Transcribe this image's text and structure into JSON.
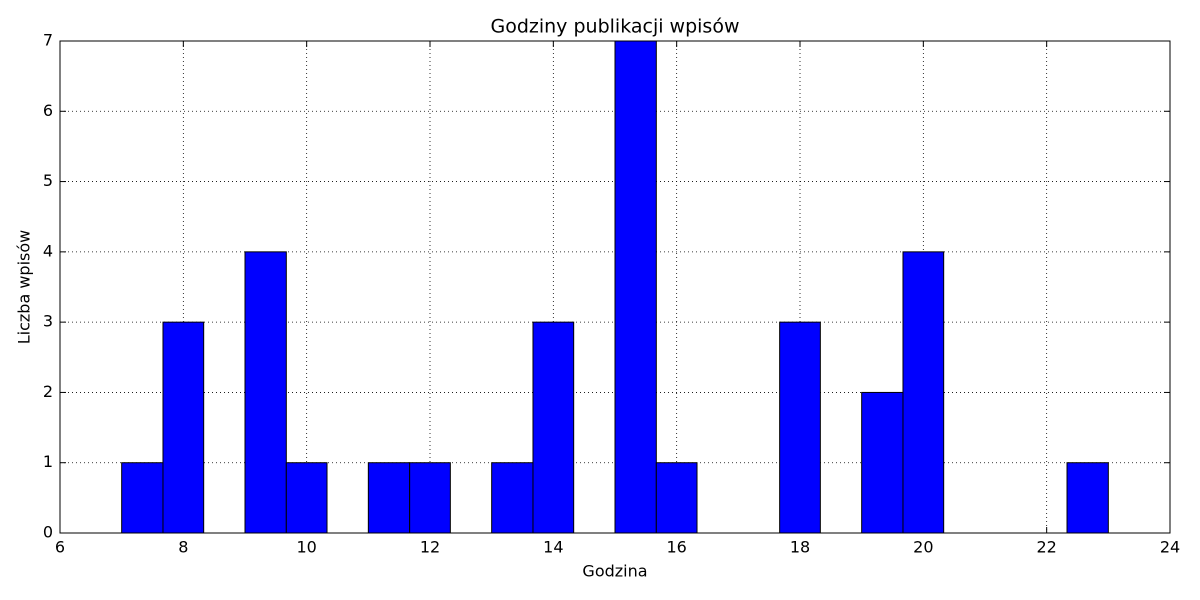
{
  "chart_data": {
    "type": "histogram",
    "title": "Godziny publikacji wpisów",
    "xlabel": "Godzina",
    "ylabel": "Liczba wpisów",
    "bins": [
      7,
      7.67,
      8.33,
      9,
      9.67,
      10.33,
      11,
      11.67,
      12.33,
      13,
      13.67,
      14.33,
      15,
      15.67,
      16.33,
      17,
      17.67,
      18.33,
      19,
      19.67,
      20.33,
      21,
      21.67,
      22.33,
      23
    ],
    "values": [
      1,
      3,
      0,
      4,
      1,
      0,
      1,
      1,
      0,
      1,
      3,
      0,
      7,
      1,
      0,
      0,
      3,
      0,
      2,
      4,
      0,
      0,
      0,
      1
    ],
    "color": "#0000ff",
    "xlim": [
      6,
      24
    ],
    "xticks": [
      6,
      8,
      10,
      12,
      14,
      16,
      18,
      20,
      22,
      24
    ],
    "ylim": [
      0,
      7
    ],
    "yticks": [
      0,
      1,
      2,
      3,
      4,
      5,
      6,
      7
    ],
    "grid": true
  }
}
